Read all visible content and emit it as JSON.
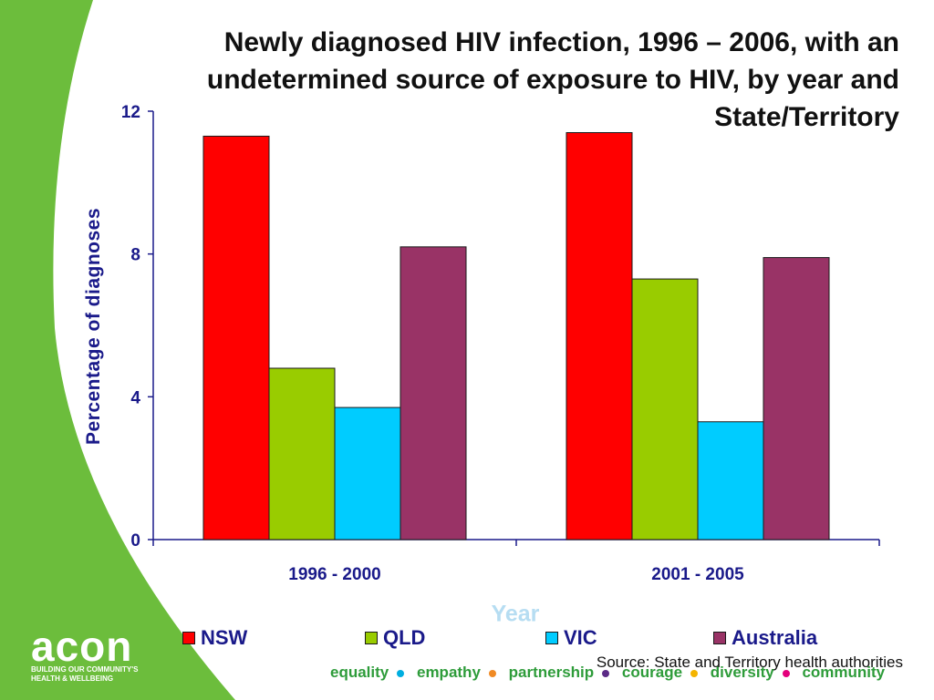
{
  "chart_data": {
    "type": "bar",
    "title": "Newly diagnosed HIV infection, 1996 – 2006, with an undetermined source of exposure to HIV, by year and State/Territory",
    "xlabel": "Year",
    "ylabel": "Percentage of diagnoses",
    "categories": [
      "1996 - 2000",
      "2001 - 2005"
    ],
    "series": [
      {
        "name": "NSW",
        "color": "#ff0000",
        "values": [
          11.3,
          11.4
        ]
      },
      {
        "name": "QLD",
        "color": "#99cc00",
        "values": [
          4.8,
          7.3
        ]
      },
      {
        "name": "VIC",
        "color": "#00ccff",
        "values": [
          3.7,
          3.3
        ]
      },
      {
        "name": "Australia",
        "color": "#993366",
        "values": [
          8.2,
          7.9
        ]
      }
    ],
    "ylim": [
      0,
      12
    ],
    "yticks": [
      0,
      4,
      8,
      12
    ],
    "grid": false,
    "legend_position": "bottom"
  },
  "source": "Source: State and Territory health authorities",
  "logo": {
    "text": "acon",
    "tagline": "BUILDING OUR COMMUNITY'S HEALTH & WELLBEING"
  },
  "values_banner": [
    {
      "text": "equality",
      "dot_color": "#00aee0"
    },
    {
      "text": "empathy",
      "dot_color": "#f08a24"
    },
    {
      "text": "partnership",
      "dot_color": "#5b2a86"
    },
    {
      "text": "courage",
      "dot_color": "#f4b400"
    },
    {
      "text": "diversity",
      "dot_color": "#e4007c"
    },
    {
      "text": "community",
      "dot_color": ""
    }
  ],
  "colors": {
    "brand_green": "#6cbd3c",
    "text_navy": "#1a1a8a"
  }
}
